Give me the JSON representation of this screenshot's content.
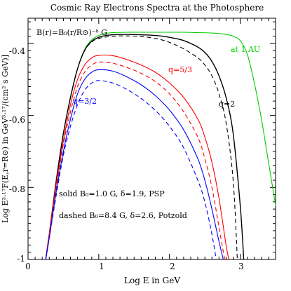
{
  "chart_data": {
    "type": "line",
    "title": "Cosmic Ray Electrons Spectra at the Photosphere",
    "xlabel": "Log E in GeV",
    "ylabel": "Log E³·¹⁷F(E,r=R⊙) in GeV³·¹⁷/(cm² s GeV)]",
    "xlim": [
      0,
      3.5
    ],
    "ylim": [
      -1,
      -0.33
    ],
    "x_ticks": [
      0,
      1,
      2,
      3
    ],
    "y_ticks": [
      -1,
      -0.8,
      -0.6,
      -0.4
    ],
    "x_tick_labels": [
      "0",
      "1",
      "2",
      "3"
    ],
    "y_tick_labels": [
      "-1",
      "-0.8",
      "-0.6",
      "-0.4"
    ],
    "grid": false,
    "formula_label": "B(r)=B₀(r/R⊙)⁻ᵟ G",
    "annotations": {
      "at_1au": "at 1 AU",
      "q2": "q=2",
      "q53": "q=5/3",
      "q32": "q=3/2",
      "solid": "solid B₀=1.0 G, δ=1.9, PSP",
      "dashed": "dashed B₀=8.4 G, δ=2.6, Potzold"
    },
    "series": [
      {
        "name": "at 1 AU",
        "color": "#00cc00",
        "dash": "solid",
        "x": [
          0.25,
          0.3,
          0.4,
          0.5,
          0.6,
          0.7,
          0.8,
          0.9,
          1.0,
          1.1,
          1.2,
          1.4,
          1.6,
          1.8,
          2.0,
          2.2,
          2.4,
          2.6,
          2.8,
          2.9,
          3.0,
          3.1,
          3.2,
          3.3,
          3.4,
          3.5
        ],
        "y": [
          -1.0,
          -0.93,
          -0.78,
          -0.65,
          -0.55,
          -0.47,
          -0.417,
          -0.39,
          -0.378,
          -0.372,
          -0.37,
          -0.369,
          -0.369,
          -0.369,
          -0.369,
          -0.369,
          -0.37,
          -0.371,
          -0.375,
          -0.38,
          -0.392,
          -0.43,
          -0.51,
          -0.61,
          -0.73,
          -0.85
        ]
      },
      {
        "name": "q=2",
        "color": "#000000",
        "dash": "solid",
        "x": [
          0.25,
          0.3,
          0.4,
          0.5,
          0.6,
          0.7,
          0.8,
          0.9,
          1.0,
          1.1,
          1.2,
          1.4,
          1.6,
          1.8,
          2.0,
          2.2,
          2.4,
          2.5,
          2.6,
          2.7,
          2.8,
          2.9,
          3.0,
          3.05
        ],
        "y": [
          -1.0,
          -0.93,
          -0.78,
          -0.65,
          -0.55,
          -0.47,
          -0.419,
          -0.394,
          -0.383,
          -0.378,
          -0.376,
          -0.375,
          -0.376,
          -0.378,
          -0.383,
          -0.392,
          -0.41,
          -0.425,
          -0.45,
          -0.49,
          -0.55,
          -0.65,
          -0.85,
          -1.0
        ]
      },
      {
        "name": "q=2 dashed",
        "color": "#000000",
        "dash": "dashed",
        "x": [
          0.25,
          0.3,
          0.4,
          0.5,
          0.6,
          0.7,
          0.8,
          0.9,
          1.0,
          1.2,
          1.4,
          1.6,
          1.8,
          2.0,
          2.2,
          2.4,
          2.5,
          2.6,
          2.7,
          2.8,
          2.9,
          2.96
        ],
        "y": [
          -1.0,
          -0.93,
          -0.78,
          -0.65,
          -0.55,
          -0.47,
          -0.42,
          -0.396,
          -0.386,
          -0.38,
          -0.379,
          -0.381,
          -0.386,
          -0.397,
          -0.415,
          -0.44,
          -0.46,
          -0.49,
          -0.54,
          -0.62,
          -0.78,
          -1.0
        ]
      },
      {
        "name": "q=5/3",
        "color": "#ff0000",
        "dash": "solid",
        "x": [
          0.25,
          0.3,
          0.4,
          0.5,
          0.6,
          0.7,
          0.8,
          0.9,
          1.0,
          1.2,
          1.4,
          1.6,
          1.8,
          2.0,
          2.2,
          2.4,
          2.5,
          2.6,
          2.7,
          2.8,
          2.84
        ],
        "y": [
          -1.0,
          -0.93,
          -0.79,
          -0.67,
          -0.57,
          -0.5,
          -0.46,
          -0.44,
          -0.433,
          -0.434,
          -0.445,
          -0.46,
          -0.48,
          -0.51,
          -0.55,
          -0.61,
          -0.66,
          -0.73,
          -0.83,
          -0.96,
          -1.0
        ]
      },
      {
        "name": "q=5/3 dashed",
        "color": "#ff0000",
        "dash": "dashed",
        "x": [
          0.25,
          0.3,
          0.4,
          0.5,
          0.6,
          0.7,
          0.8,
          0.9,
          1.0,
          1.2,
          1.4,
          1.6,
          1.8,
          2.0,
          2.2,
          2.4,
          2.5,
          2.6,
          2.7,
          2.78
        ],
        "y": [
          -1.0,
          -0.93,
          -0.8,
          -0.68,
          -0.59,
          -0.52,
          -0.48,
          -0.46,
          -0.452,
          -0.455,
          -0.467,
          -0.483,
          -0.506,
          -0.54,
          -0.59,
          -0.66,
          -0.72,
          -0.8,
          -0.91,
          -1.0
        ]
      },
      {
        "name": "q=3/2",
        "color": "#0000ff",
        "dash": "solid",
        "x": [
          0.25,
          0.3,
          0.4,
          0.5,
          0.6,
          0.7,
          0.8,
          0.9,
          1.0,
          1.2,
          1.4,
          1.6,
          1.8,
          2.0,
          2.2,
          2.4,
          2.5,
          2.6,
          2.7,
          2.76
        ],
        "y": [
          -1.0,
          -0.94,
          -0.81,
          -0.7,
          -0.61,
          -0.54,
          -0.5,
          -0.48,
          -0.473,
          -0.477,
          -0.493,
          -0.515,
          -0.545,
          -0.585,
          -0.64,
          -0.72,
          -0.78,
          -0.86,
          -0.95,
          -1.0
        ]
      },
      {
        "name": "q=3/2 dashed",
        "color": "#0000ff",
        "dash": "dashed",
        "x": [
          0.25,
          0.3,
          0.4,
          0.5,
          0.6,
          0.7,
          0.8,
          0.9,
          1.0,
          1.2,
          1.4,
          1.6,
          1.8,
          2.0,
          2.2,
          2.4,
          2.5,
          2.6,
          2.66
        ],
        "y": [
          -1.0,
          -0.94,
          -0.82,
          -0.71,
          -0.63,
          -0.57,
          -0.53,
          -0.51,
          -0.503,
          -0.51,
          -0.528,
          -0.553,
          -0.586,
          -0.63,
          -0.69,
          -0.78,
          -0.84,
          -0.93,
          -1.0
        ]
      }
    ]
  }
}
